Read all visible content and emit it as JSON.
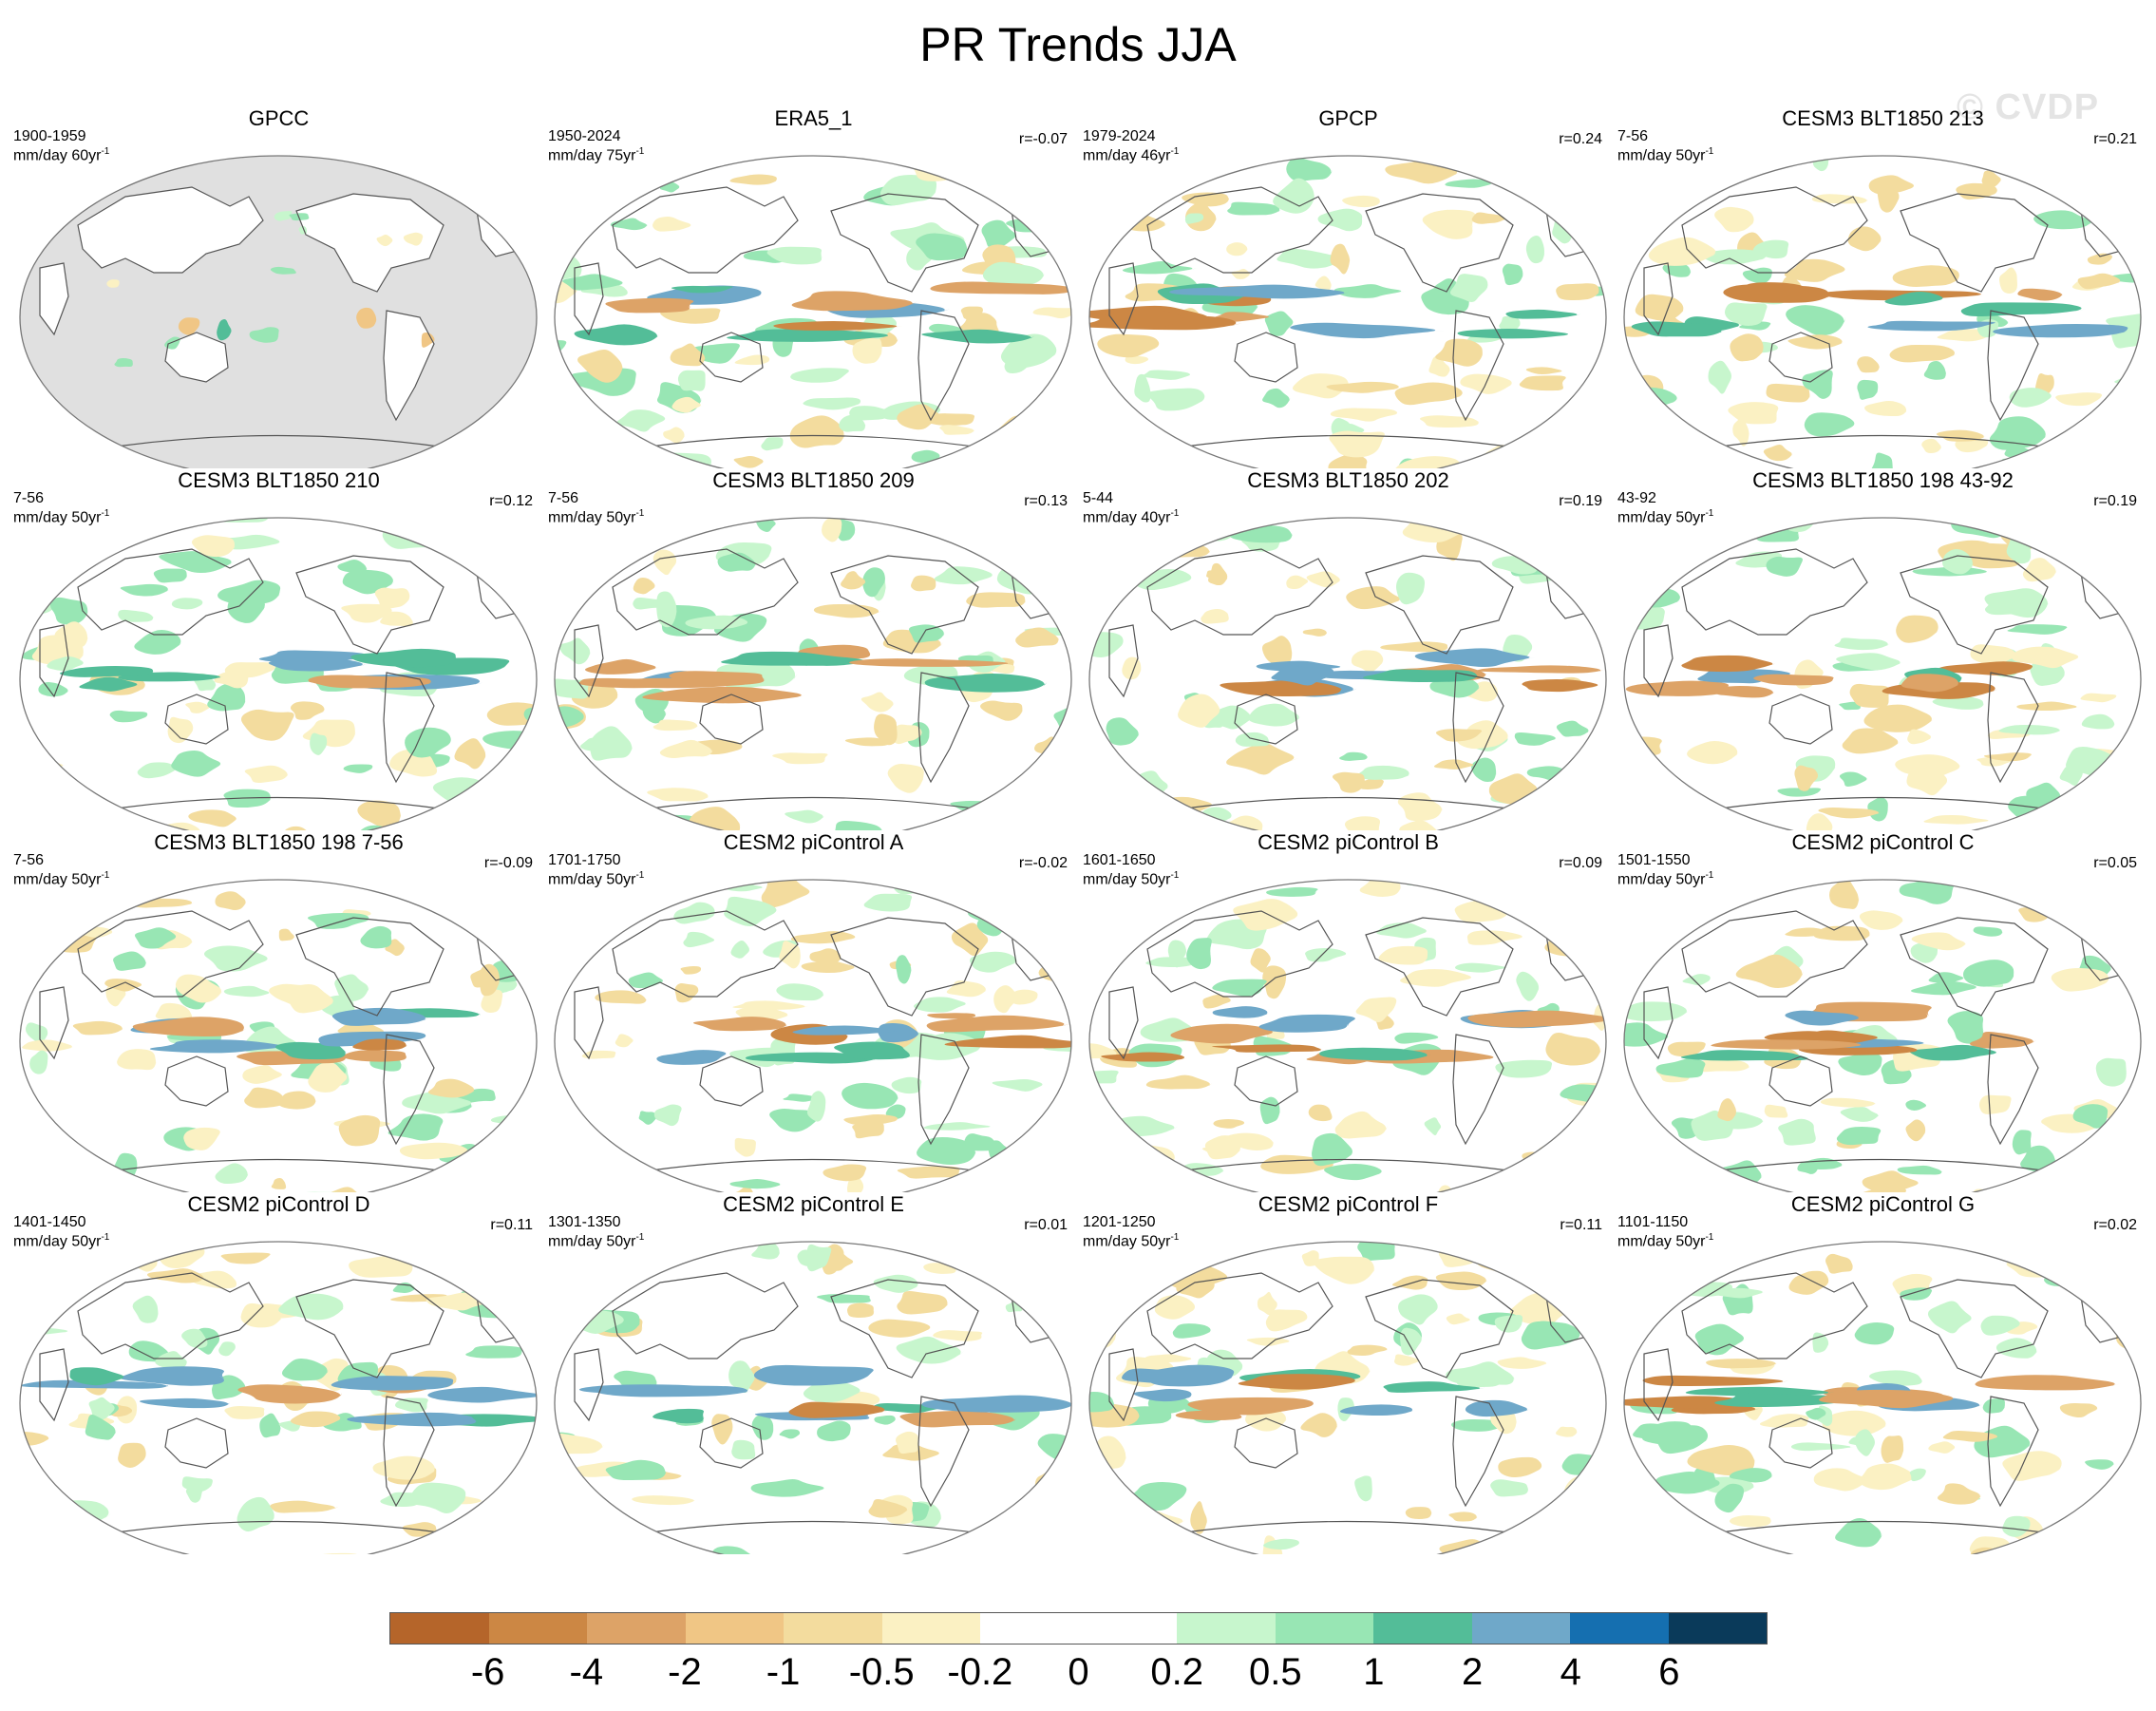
{
  "title": "PR Trends JJA",
  "watermark": "© CVDP",
  "colors": {
    "land_missing": "#e0e0e0",
    "ocean": "#ffffff",
    "coast": "#555555"
  },
  "colorbar": {
    "colors": [
      "#b5652a",
      "#cc8744",
      "#dda367",
      "#f0c685",
      "#f3dc9e",
      "#fbf1c3",
      "#ffffff",
      "#ffffff",
      "#c7f6cd",
      "#98e6b4",
      "#53bd98",
      "#6fa8c9",
      "#156fb0",
      "#0a3a5a"
    ],
    "labels": [
      "-6",
      "-4",
      "-2",
      "-1",
      "-0.5",
      "-0.2",
      "0",
      "0.2",
      "0.5",
      "1",
      "2",
      "4",
      "6"
    ]
  },
  "panels": [
    {
      "title": "GPCC",
      "period": "1900-1959",
      "units": "mm/day 60yr",
      "units_sup": "-1",
      "r": "",
      "land_only": true,
      "seed": 3
    },
    {
      "title": "ERA5_1",
      "period": "1950-2024",
      "units": "mm/day 75yr",
      "units_sup": "-1",
      "r": "r=-0.07",
      "land_only": false,
      "seed": 11
    },
    {
      "title": "GPCP",
      "period": "1979-2024",
      "units": "mm/day 46yr",
      "units_sup": "-1",
      "r": "r=0.24",
      "land_only": false,
      "seed": 17
    },
    {
      "title": "CESM3 BLT1850 213",
      "period": "7-56",
      "units": "mm/day 50yr",
      "units_sup": "-1",
      "r": "r=0.21",
      "land_only": false,
      "seed": 23
    },
    {
      "title": "CESM3 BLT1850 210",
      "period": "7-56",
      "units": "mm/day 50yr",
      "units_sup": "-1",
      "r": "r=0.12",
      "land_only": false,
      "seed": 29
    },
    {
      "title": "CESM3 BLT1850 209",
      "period": "7-56",
      "units": "mm/day 50yr",
      "units_sup": "-1",
      "r": "r=0.13",
      "land_only": false,
      "seed": 31
    },
    {
      "title": "CESM3 BLT1850 202",
      "period": "5-44",
      "units": "mm/day 40yr",
      "units_sup": "-1",
      "r": "r=0.19",
      "land_only": false,
      "seed": 37
    },
    {
      "title": "CESM3 BLT1850 198 43-92",
      "period": "43-92",
      "units": "mm/day 50yr",
      "units_sup": "-1",
      "r": "r=0.19",
      "land_only": false,
      "seed": 41
    },
    {
      "title": "CESM3 BLT1850 198 7-56",
      "period": "7-56",
      "units": "mm/day 50yr",
      "units_sup": "-1",
      "r": "r=-0.09",
      "land_only": false,
      "seed": 43
    },
    {
      "title": "CESM2 piControl A",
      "period": "1701-1750",
      "units": "mm/day 50yr",
      "units_sup": "-1",
      "r": "r=-0.02",
      "land_only": false,
      "seed": 47
    },
    {
      "title": "CESM2 piControl B",
      "period": "1601-1650",
      "units": "mm/day 50yr",
      "units_sup": "-1",
      "r": "r=0.09",
      "land_only": false,
      "seed": 53
    },
    {
      "title": "CESM2 piControl C",
      "period": "1501-1550",
      "units": "mm/day 50yr",
      "units_sup": "-1",
      "r": "r=0.05",
      "land_only": false,
      "seed": 59
    },
    {
      "title": "CESM2 piControl D",
      "period": "1401-1450",
      "units": "mm/day 50yr",
      "units_sup": "-1",
      "r": "r=0.11",
      "land_only": false,
      "seed": 61
    },
    {
      "title": "CESM2 piControl E",
      "period": "1301-1350",
      "units": "mm/day 50yr",
      "units_sup": "-1",
      "r": "r=0.01",
      "land_only": false,
      "seed": 67
    },
    {
      "title": "CESM2 piControl F",
      "period": "1201-1250",
      "units": "mm/day 50yr",
      "units_sup": "-1",
      "r": "r=0.11",
      "land_only": false,
      "seed": 71
    },
    {
      "title": "CESM2 piControl G",
      "period": "1101-1150",
      "units": "mm/day 50yr",
      "units_sup": "-1",
      "r": "r=0.02",
      "land_only": false,
      "seed": 73
    }
  ]
}
